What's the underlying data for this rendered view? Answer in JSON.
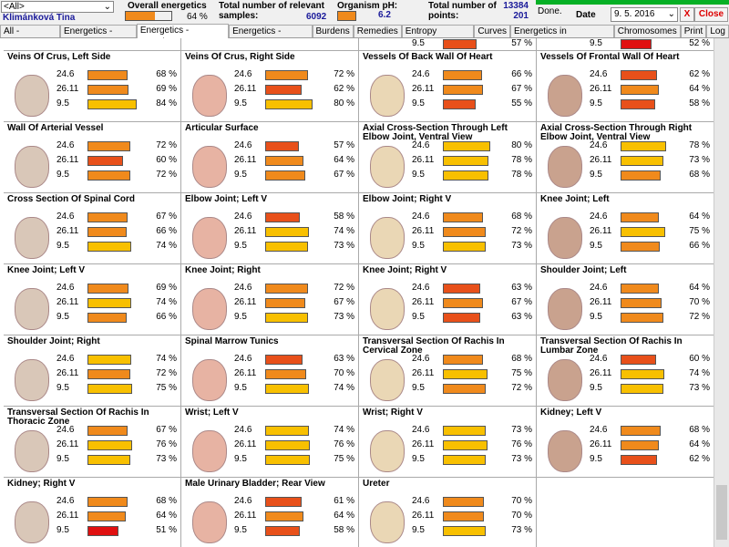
{
  "header": {
    "filter": "<All>",
    "patient": "Klimánková Tina",
    "overall_label": "Overall energetics",
    "overall_value": {
      "value": 64,
      "label": "64 %"
    },
    "samples_label": "Total number of relevant samples:",
    "samples": "6092",
    "ph_label": "Organism pH:",
    "ph": "6.2",
    "points_label": "Total number of points:",
    "points": "13384",
    "points2": "201",
    "status": "Done.",
    "date_label": "Date",
    "date": "9. 5. 2016",
    "x_button": "X",
    "close": "Close"
  },
  "tabs": {
    "items": [
      "All - overview",
      "Energetics - table",
      "Energetics - overview",
      "Energetics - history",
      "Burdens",
      "Remedies",
      "Entropy analysis",
      "Curves",
      "Energetics in pentagram",
      "Chromosomes",
      "Print",
      "Log"
    ],
    "active": 2
  },
  "row_labels": [
    "24.6",
    "26.11",
    "9.5"
  ],
  "top_partial": [
    null,
    null,
    {
      "value": 57,
      "label": "57 %"
    },
    {
      "value": 52,
      "label": "52 %"
    }
  ],
  "cards": [
    {
      "title": "Veins Of Crus, Left Side",
      "values": [
        68,
        69,
        84
      ],
      "value_labels": [
        "68 %",
        "69 %",
        "84 %"
      ]
    },
    {
      "title": "Veins Of Crus, Right Side",
      "values": [
        72,
        62,
        80
      ],
      "value_labels": [
        "72 %",
        "62 %",
        "80 %"
      ]
    },
    {
      "title": "Vessels Of Back Wall Of Heart",
      "values": [
        66,
        67,
        55
      ],
      "value_labels": [
        "66 %",
        "67 %",
        "55 %"
      ]
    },
    {
      "title": "Vessels Of Frontal Wall Of Heart",
      "values": [
        62,
        64,
        58
      ],
      "value_labels": [
        "62 %",
        "64 %",
        "58 %"
      ]
    },
    {
      "title": "Wall Of Arterial Vessel",
      "values": [
        72,
        60,
        72
      ],
      "value_labels": [
        "72 %",
        "60 %",
        "72 %"
      ]
    },
    {
      "title": "Articular Surface",
      "values": [
        57,
        64,
        67
      ],
      "value_labels": [
        "57 %",
        "64 %",
        "67 %"
      ]
    },
    {
      "title": "Axial Cross-Section Through Left Elbow Joint, Ventral View",
      "values": [
        80,
        78,
        78
      ],
      "value_labels": [
        "80 %",
        "78 %",
        "78 %"
      ]
    },
    {
      "title": "Axial Cross-Section Through Right Elbow Joint, Ventral View",
      "values": [
        78,
        73,
        68
      ],
      "value_labels": [
        "78 %",
        "73 %",
        "68 %"
      ]
    },
    {
      "title": "Cross Section Of Spinal Cord",
      "values": [
        67,
        66,
        74
      ],
      "value_labels": [
        "67 %",
        "66 %",
        "74 %"
      ]
    },
    {
      "title": "Elbow Joint; Left V",
      "values": [
        58,
        74,
        73
      ],
      "value_labels": [
        "58 %",
        "74 %",
        "73 %"
      ]
    },
    {
      "title": "Elbow Joint; Right V",
      "values": [
        68,
        72,
        73
      ],
      "value_labels": [
        "68 %",
        "72 %",
        "73 %"
      ]
    },
    {
      "title": "Knee Joint; Left",
      "values": [
        64,
        75,
        66
      ],
      "value_labels": [
        "64 %",
        "75 %",
        "66 %"
      ]
    },
    {
      "title": "Knee Joint; Left V",
      "values": [
        69,
        74,
        66
      ],
      "value_labels": [
        "69 %",
        "74 %",
        "66 %"
      ]
    },
    {
      "title": "Knee Joint; Right",
      "values": [
        72,
        67,
        73
      ],
      "value_labels": [
        "72 %",
        "67 %",
        "73 %"
      ]
    },
    {
      "title": "Knee Joint; Right V",
      "values": [
        63,
        67,
        63
      ],
      "value_labels": [
        "63 %",
        "67 %",
        "63 %"
      ]
    },
    {
      "title": "Shoulder Joint; Left",
      "values": [
        64,
        70,
        72
      ],
      "value_labels": [
        "64 %",
        "70 %",
        "72 %"
      ]
    },
    {
      "title": "Shoulder Joint; Right",
      "values": [
        74,
        72,
        75
      ],
      "value_labels": [
        "74 %",
        "72 %",
        "75 %"
      ]
    },
    {
      "title": "Spinal Marrow Tunics",
      "values": [
        63,
        70,
        74
      ],
      "value_labels": [
        "63 %",
        "70 %",
        "74 %"
      ]
    },
    {
      "title": "Transversal Section Of Rachis In Cervical Zone",
      "values": [
        68,
        75,
        72
      ],
      "value_labels": [
        "68 %",
        "75 %",
        "72 %"
      ]
    },
    {
      "title": "Transversal Section Of Rachis In Lumbar Zone",
      "values": [
        60,
        74,
        73
      ],
      "value_labels": [
        "60 %",
        "74 %",
        "73 %"
      ]
    },
    {
      "title": "Transversal Section Of Rachis In Thoracic Zone",
      "values": [
        67,
        76,
        73
      ],
      "value_labels": [
        "67 %",
        "76 %",
        "73 %"
      ]
    },
    {
      "title": "Wrist; Left V",
      "values": [
        74,
        76,
        75
      ],
      "value_labels": [
        "74 %",
        "76 %",
        "75 %"
      ]
    },
    {
      "title": "Wrist; Right V",
      "values": [
        73,
        76,
        73
      ],
      "value_labels": [
        "73 %",
        "76 %",
        "73 %"
      ]
    },
    {
      "title": "Kidney; Left V",
      "values": [
        68,
        64,
        62
      ],
      "value_labels": [
        "68 %",
        "64 %",
        "62 %"
      ]
    },
    {
      "title": "Kidney; Right V",
      "values": [
        68,
        64,
        51
      ],
      "value_labels": [
        "68 %",
        "64 %",
        "51 %"
      ]
    },
    {
      "title": "Male Urinary Bladder; Rear View",
      "values": [
        61,
        64,
        58
      ],
      "value_labels": [
        "61 %",
        "64 %",
        "58 %"
      ]
    },
    {
      "title": "Ureter",
      "values": [
        70,
        70,
        73
      ],
      "value_labels": [
        "70 %",
        "70 %",
        "73 %"
      ]
    }
  ]
}
